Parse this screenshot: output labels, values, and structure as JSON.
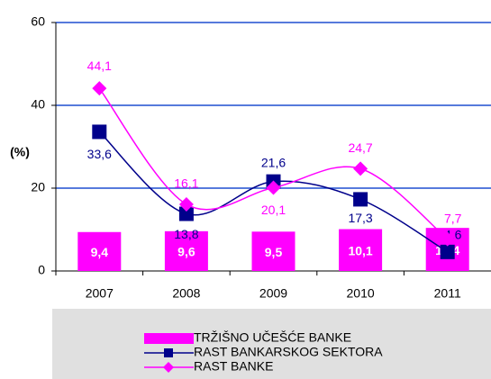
{
  "chart_data": {
    "type": "bar",
    "y_label": "(%)",
    "categories": [
      "2007",
      "2008",
      "2009",
      "2010",
      "2011"
    ],
    "ylim": [
      0,
      60
    ],
    "yticks": [
      0,
      20,
      40,
      60
    ],
    "grid": true,
    "series": [
      {
        "name": "TRŽIŠNO UČEŠĆE BANKE",
        "type": "bar",
        "color": "#ff00ff",
        "values": [
          9.4,
          9.6,
          9.5,
          10.1,
          10.4
        ],
        "value_labels": [
          "9,4",
          "9,6",
          "9,5",
          "10,1",
          "10,4"
        ]
      },
      {
        "name": "RAST BANKARSKOG SEKTORA",
        "type": "line",
        "color": "#00008b",
        "values": [
          33.6,
          13.8,
          21.6,
          17.3,
          4.6
        ],
        "value_labels": [
          "33,6",
          "13,8",
          "21,6",
          "17,3",
          "4,6"
        ]
      },
      {
        "name": "RAST BANKE",
        "type": "line",
        "color": "#ff00ff",
        "values": [
          44.1,
          16.1,
          20.1,
          24.7,
          7.7
        ],
        "value_labels": [
          "44,1",
          "16,1",
          "20,1",
          "24,7",
          "7,7"
        ]
      }
    ]
  }
}
